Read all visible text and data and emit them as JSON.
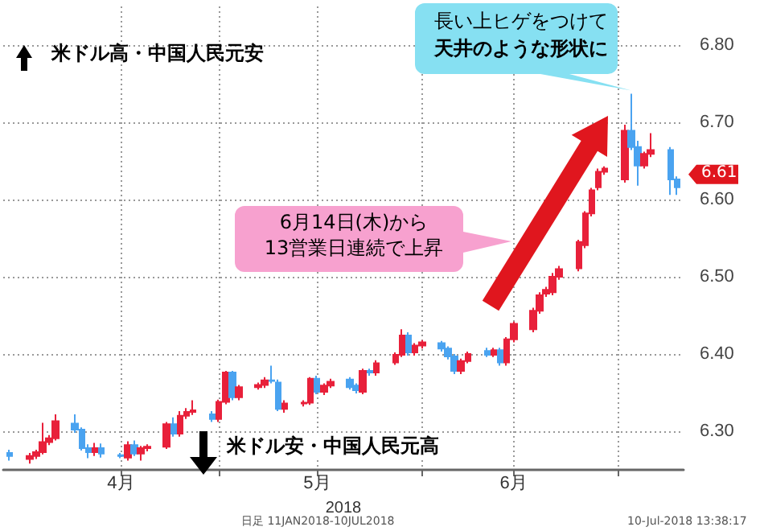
{
  "chart_data": {
    "type": "candlestick",
    "x": [
      "2018-03-30",
      "2018-04-02",
      "2018-04-03",
      "2018-04-04",
      "2018-04-05",
      "2018-04-06",
      "2018-04-09",
      "2018-04-10",
      "2018-04-11",
      "2018-04-12",
      "2018-04-13",
      "2018-04-16",
      "2018-04-17",
      "2018-04-18",
      "2018-04-19",
      "2018-04-20",
      "2018-04-23",
      "2018-04-24",
      "2018-04-25",
      "2018-04-26",
      "2018-04-27",
      "2018-04-30",
      "2018-05-01",
      "2018-05-02",
      "2018-05-03",
      "2018-05-04",
      "2018-05-07",
      "2018-05-08",
      "2018-05-09",
      "2018-05-10",
      "2018-05-11",
      "2018-05-14",
      "2018-05-15",
      "2018-05-16",
      "2018-05-17",
      "2018-05-18",
      "2018-05-21",
      "2018-05-22",
      "2018-05-23",
      "2018-05-24",
      "2018-05-25",
      "2018-05-28",
      "2018-05-29",
      "2018-05-30",
      "2018-05-31",
      "2018-06-01",
      "2018-06-04",
      "2018-06-05",
      "2018-06-06",
      "2018-06-07",
      "2018-06-08",
      "2018-06-11",
      "2018-06-12",
      "2018-06-13",
      "2018-06-14",
      "2018-06-15",
      "2018-06-18",
      "2018-06-19",
      "2018-06-20",
      "2018-06-21",
      "2018-06-22",
      "2018-06-25",
      "2018-06-26",
      "2018-06-27",
      "2018-06-28",
      "2018-06-29",
      "2018-07-02",
      "2018-07-03",
      "2018-07-04",
      "2018-07-05",
      "2018-07-06",
      "2018-07-09",
      "2018-07-10"
    ],
    "ohlc": [
      [
        6.272,
        6.276,
        6.262,
        6.268
      ],
      [
        6.264,
        6.272,
        6.258,
        6.268
      ],
      [
        6.268,
        6.276,
        6.264,
        6.273
      ],
      [
        6.273,
        6.311,
        6.27,
        6.286
      ],
      [
        6.286,
        6.295,
        6.282,
        6.291
      ],
      [
        6.291,
        6.322,
        6.288,
        6.313
      ],
      [
        6.31,
        6.322,
        6.298,
        6.302
      ],
      [
        6.302,
        6.305,
        6.275,
        6.278
      ],
      [
        6.278,
        6.283,
        6.265,
        6.273
      ],
      [
        6.273,
        6.285,
        6.268,
        6.278
      ],
      [
        6.278,
        6.284,
        6.266,
        6.271
      ],
      [
        6.269,
        6.272,
        6.265,
        6.268
      ],
      [
        6.266,
        6.287,
        6.262,
        6.282
      ],
      [
        6.282,
        6.288,
        6.268,
        6.271
      ],
      [
        6.271,
        6.281,
        6.262,
        6.278
      ],
      [
        6.278,
        6.283,
        6.274,
        6.28
      ],
      [
        6.28,
        6.312,
        6.277,
        6.309
      ],
      [
        6.309,
        6.318,
        6.293,
        6.297
      ],
      [
        6.297,
        6.326,
        6.293,
        6.32
      ],
      [
        6.32,
        6.33,
        6.316,
        6.325
      ],
      [
        6.325,
        6.34,
        6.321,
        6.327
      ],
      [
        6.322,
        6.326,
        6.312,
        6.316
      ],
      [
        6.316,
        6.341,
        6.312,
        6.338
      ],
      [
        6.338,
        6.378,
        6.335,
        6.376
      ],
      [
        6.376,
        6.378,
        6.34,
        6.344
      ],
      [
        6.344,
        6.36,
        6.34,
        6.357
      ],
      [
        6.357,
        6.363,
        6.354,
        6.36
      ],
      [
        6.36,
        6.37,
        6.356,
        6.366
      ],
      [
        6.366,
        6.385,
        6.362,
        6.365
      ],
      [
        6.363,
        6.367,
        6.326,
        6.329
      ],
      [
        6.329,
        6.34,
        6.324,
        6.336
      ],
      [
        6.336,
        6.34,
        6.332,
        6.337
      ],
      [
        6.337,
        6.37,
        6.334,
        6.368
      ],
      [
        6.368,
        6.372,
        6.348,
        6.351
      ],
      [
        6.351,
        6.362,
        6.347,
        6.359
      ],
      [
        6.359,
        6.368,
        6.356,
        6.364
      ],
      [
        6.367,
        6.37,
        6.354,
        6.357
      ],
      [
        6.359,
        6.362,
        6.349,
        6.353
      ],
      [
        6.351,
        6.381,
        6.348,
        6.378
      ],
      [
        6.378,
        6.381,
        6.372,
        6.376
      ],
      [
        6.376,
        6.392,
        6.372,
        6.388
      ],
      [
        6.389,
        6.402,
        6.386,
        6.399
      ],
      [
        6.399,
        6.432,
        6.396,
        6.424
      ],
      [
        6.424,
        6.428,
        6.398,
        6.402
      ],
      [
        6.402,
        6.414,
        6.398,
        6.411
      ],
      [
        6.411,
        6.418,
        6.407,
        6.415
      ],
      [
        6.414,
        6.417,
        6.403,
        6.407
      ],
      [
        6.407,
        6.41,
        6.393,
        6.397
      ],
      [
        6.397,
        6.4,
        6.374,
        6.378
      ],
      [
        6.378,
        6.394,
        6.374,
        6.391
      ],
      [
        6.391,
        6.403,
        6.388,
        6.4
      ],
      [
        6.404,
        6.408,
        6.396,
        6.399
      ],
      [
        6.399,
        6.408,
        6.396,
        6.405
      ],
      [
        6.405,
        6.408,
        6.385,
        6.389
      ],
      [
        6.389,
        6.422,
        6.385,
        6.419
      ],
      [
        6.419,
        6.442,
        6.415,
        6.439
      ],
      [
        6.432,
        6.46,
        6.428,
        6.456
      ],
      [
        6.456,
        6.48,
        6.452,
        6.476
      ],
      [
        6.478,
        6.487,
        6.474,
        6.483
      ],
      [
        6.48,
        6.505,
        6.476,
        6.5
      ],
      [
        6.5,
        6.514,
        6.496,
        6.51
      ],
      [
        6.511,
        6.548,
        6.507,
        6.545
      ],
      [
        6.541,
        6.585,
        6.537,
        6.582
      ],
      [
        6.582,
        6.615,
        6.578,
        6.612
      ],
      [
        6.616,
        6.64,
        6.612,
        6.636
      ],
      [
        6.636,
        6.643,
        6.632,
        6.64
      ],
      [
        6.626,
        6.697,
        6.622,
        6.689
      ],
      [
        6.689,
        6.737,
        6.664,
        6.668
      ],
      [
        6.668,
        6.676,
        6.618,
        6.644
      ],
      [
        6.644,
        6.662,
        6.64,
        6.659
      ],
      [
        6.659,
        6.686,
        6.655,
        6.664
      ],
      [
        6.664,
        6.668,
        6.606,
        6.626
      ],
      [
        6.626,
        6.63,
        6.606,
        6.616
      ]
    ],
    "colors": [
      "#4aa3f0",
      "#e8203a",
      "#e8203a",
      "#e8203a",
      "#e8203a",
      "#e8203a",
      "#4aa3f0",
      "#4aa3f0",
      "#4aa3f0",
      "#e8203a",
      "#4aa3f0",
      "#4aa3f0",
      "#e8203a",
      "#4aa3f0",
      "#e8203a",
      "#e8203a",
      "#e8203a",
      "#4aa3f0",
      "#e8203a",
      "#e8203a",
      "#e8203a",
      "#4aa3f0",
      "#e8203a",
      "#e8203a",
      "#4aa3f0",
      "#e8203a",
      "#e8203a",
      "#e8203a",
      "#4aa3f0",
      "#4aa3f0",
      "#e8203a",
      "#e8203a",
      "#e8203a",
      "#4aa3f0",
      "#e8203a",
      "#e8203a",
      "#4aa3f0",
      "#4aa3f0",
      "#e8203a",
      "#4aa3f0",
      "#e8203a",
      "#e8203a",
      "#e8203a",
      "#4aa3f0",
      "#e8203a",
      "#e8203a",
      "#4aa3f0",
      "#4aa3f0",
      "#4aa3f0",
      "#e8203a",
      "#e8203a",
      "#4aa3f0",
      "#e8203a",
      "#4aa3f0",
      "#e8203a",
      "#e8203a",
      "#e8203a",
      "#e8203a",
      "#e8203a",
      "#e8203a",
      "#e8203a",
      "#e8203a",
      "#e8203a",
      "#e8203a",
      "#e8203a",
      "#e8203a",
      "#e8203a",
      "#4aa3f0",
      "#4aa3f0",
      "#e8203a",
      "#e8203a",
      "#4aa3f0",
      "#4aa3f0"
    ],
    "xlim": [
      "2018-03-29",
      "2018-07-11"
    ],
    "xticks": [
      {
        "value": "2018-04-16",
        "label": "4月"
      },
      {
        "value": "2018-05-01",
        "label": null
      },
      {
        "value": "2018-05-16",
        "label": "5月"
      },
      {
        "value": "2018-06-01",
        "label": null
      },
      {
        "value": "2018-06-15",
        "label": "6月"
      },
      {
        "value": "2018-07-01",
        "label": null
      }
    ],
    "xlabel": "2018",
    "ylim": [
      6.25,
      6.85
    ],
    "yticks": [
      {
        "value": 6.3,
        "label": "6.30"
      },
      {
        "value": 6.4,
        "label": "6.40"
      },
      {
        "value": 6.5,
        "label": "6.50"
      },
      {
        "value": 6.6,
        "label": "6.60"
      },
      {
        "value": 6.7,
        "label": "6.70"
      },
      {
        "value": 6.8,
        "label": "6.80"
      }
    ],
    "grid": true,
    "annotations": [
      "米ドル高・中国人民元安",
      "米ドル安・中国人民元高",
      "6月14日(木)から",
      "13営業日連続で上昇",
      "長い上ヒゲをつけて",
      "天井のような形状に",
      {
        "text": "6.61",
        "x": "2018-07-10",
        "y": 6.616
      },
      "日足 11JAN2018-10JUL2018",
      "10-Jul-2018 13:38:17"
    ]
  }
}
